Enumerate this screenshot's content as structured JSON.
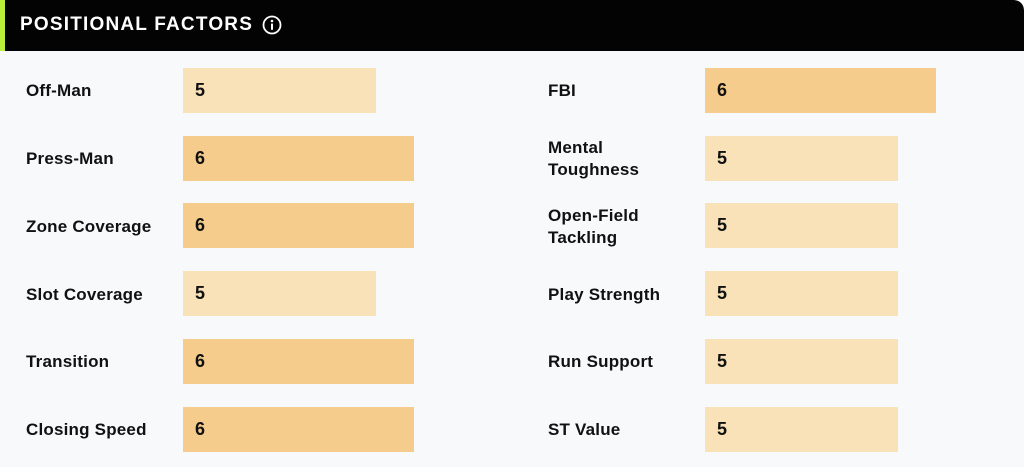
{
  "header": {
    "title": "POSITIONAL FACTORS",
    "info_icon": "info-circle-icon"
  },
  "colors": {
    "header_bg": "#030303",
    "accent": "#b8f03c",
    "bar_5": "#f9e1b8",
    "bar_6": "#f6cc8d",
    "panel_bg": "#f7f9fb"
  },
  "scale_max": 10,
  "left_factors": [
    {
      "label": "Off-Man",
      "value": "5"
    },
    {
      "label": "Press-Man",
      "value": "6"
    },
    {
      "label": "Zone Coverage",
      "value": "6"
    },
    {
      "label": "Slot Coverage",
      "value": "5"
    },
    {
      "label": "Transition",
      "value": "6"
    },
    {
      "label": "Closing Speed",
      "value": "6"
    }
  ],
  "right_factors": [
    {
      "label": "FBI",
      "value": "6"
    },
    {
      "label": "Mental Toughness",
      "value": "5"
    },
    {
      "label": "Open-Field Tackling",
      "value": "5"
    },
    {
      "label": "Play Strength",
      "value": "5"
    },
    {
      "label": "Run Support",
      "value": "5"
    },
    {
      "label": "ST Value",
      "value": "5"
    }
  ]
}
